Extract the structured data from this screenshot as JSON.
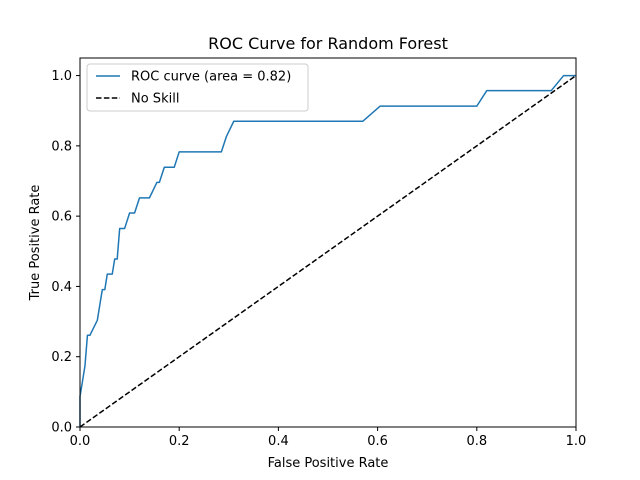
{
  "chart_data": {
    "type": "line",
    "title": "ROC Curve for Random Forest",
    "xlabel": "False Positive Rate",
    "ylabel": "True Positive Rate",
    "xlim": [
      0.0,
      1.0
    ],
    "ylim": [
      0.0,
      1.05
    ],
    "xticks": [
      "0.0",
      "0.2",
      "0.4",
      "0.6",
      "0.8",
      "1.0"
    ],
    "yticks": [
      "0.0",
      "0.2",
      "0.4",
      "0.6",
      "0.8",
      "1.0"
    ],
    "grid": false,
    "legend_position": "upper-left",
    "series": [
      {
        "name": "ROC curve (area = 0.82)",
        "color": "#1f77b4",
        "style": "solid",
        "x": [
          0.0,
          0.0,
          0.005,
          0.01,
          0.015,
          0.02,
          0.035,
          0.04,
          0.045,
          0.05,
          0.055,
          0.065,
          0.07,
          0.075,
          0.08,
          0.09,
          0.1,
          0.11,
          0.12,
          0.13,
          0.14,
          0.155,
          0.16,
          0.17,
          0.175,
          0.19,
          0.2,
          0.22,
          0.245,
          0.285,
          0.295,
          0.31,
          0.32,
          0.37,
          0.57,
          0.605,
          0.8,
          0.82,
          0.95,
          0.975,
          1.0
        ],
        "y": [
          0.0,
          0.087,
          0.13,
          0.174,
          0.261,
          0.261,
          0.304,
          0.348,
          0.391,
          0.391,
          0.435,
          0.435,
          0.478,
          0.478,
          0.565,
          0.565,
          0.609,
          0.609,
          0.652,
          0.652,
          0.652,
          0.696,
          0.696,
          0.739,
          0.739,
          0.739,
          0.783,
          0.783,
          0.783,
          0.783,
          0.826,
          0.87,
          0.87,
          0.87,
          0.87,
          0.913,
          0.913,
          0.957,
          0.957,
          1.0,
          1.0
        ]
      },
      {
        "name": "No Skill",
        "color": "#000000",
        "style": "dashed",
        "x": [
          0.0,
          1.0
        ],
        "y": [
          0.0,
          1.0
        ]
      }
    ]
  }
}
